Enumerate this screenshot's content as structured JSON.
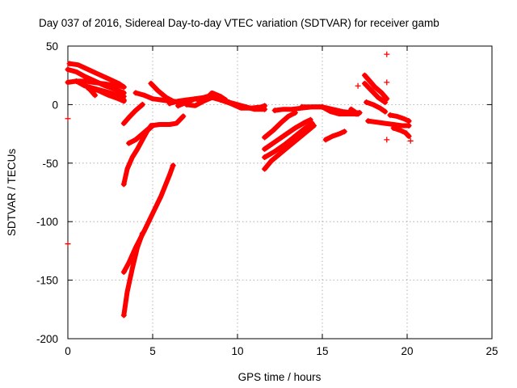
{
  "chart_data": {
    "type": "scatter",
    "title": "Day 037 of 2016, Sidereal Day-to-day VTEC variation (SDTVAR) for receiver gamb",
    "xlabel": "GPS time / hours",
    "ylabel": "SDTVAR / TECUs",
    "xlim": [
      0,
      25
    ],
    "ylim": [
      -200,
      50
    ],
    "xticks": [
      0,
      5,
      10,
      15,
      20,
      25
    ],
    "yticks": [
      50,
      0,
      -50,
      -100,
      -150,
      -200
    ],
    "grid": true,
    "color": "#ff0000",
    "marker": "+",
    "tracks": [
      {
        "x": [
          0.1,
          0.6,
          1.2,
          1.8,
          2.4,
          3.0,
          3.3
        ],
        "y": [
          35,
          34,
          30,
          26,
          22,
          18,
          15
        ]
      },
      {
        "x": [
          0.0,
          0.5,
          1.0,
          1.6,
          2.2,
          2.8,
          3.3
        ],
        "y": [
          30,
          28,
          24,
          20,
          16,
          13,
          10
        ]
      },
      {
        "x": [
          0.0,
          0.5,
          1.0,
          1.5,
          2.0,
          2.5,
          3.0,
          3.3
        ],
        "y": [
          19,
          20,
          20,
          19,
          18,
          17,
          16,
          15
        ]
      },
      {
        "x": [
          0.5,
          1.0,
          1.5,
          2.0,
          2.5,
          3.0,
          3.3
        ],
        "y": [
          20,
          16,
          14,
          12,
          10,
          8,
          7
        ]
      },
      {
        "x": [
          1.2,
          1.8,
          2.4,
          3.0,
          3.3
        ],
        "y": [
          14,
          12,
          8,
          5,
          4
        ]
      },
      {
        "x": [
          1.3,
          1.6
        ],
        "y": [
          13,
          8
        ]
      },
      {
        "x": [
          2.5,
          3.3
        ],
        "y": [
          8,
          3
        ]
      },
      {
        "x": [
          3.3,
          3.6,
          4.0,
          4.4
        ],
        "y": [
          -16,
          -11,
          -5,
          0
        ]
      },
      {
        "x": [
          3.3,
          3.5,
          3.8,
          4.1,
          4.4,
          4.7,
          5.0
        ],
        "y": [
          -68,
          -55,
          -45,
          -38,
          -30,
          -22,
          -18
        ]
      },
      {
        "x": [
          3.6,
          4.0,
          4.4,
          4.8,
          5.0
        ],
        "y": [
          -33,
          -30,
          -25,
          -20,
          -18
        ]
      },
      {
        "x": [
          4.9,
          5.4,
          6.0,
          6.4,
          6.8
        ],
        "y": [
          -18,
          -17,
          -17,
          -16,
          -10
        ]
      },
      {
        "x": [
          3.3,
          3.6,
          4.0,
          4.5,
          5.0,
          5.5,
          6.0,
          6.2
        ],
        "y": [
          -143,
          -135,
          -122,
          -108,
          -93,
          -78,
          -60,
          -52
        ]
      },
      {
        "x": [
          3.3,
          3.5,
          3.8,
          4.1,
          4.4
        ],
        "y": [
          -180,
          -160,
          -140,
          -122,
          -110
        ]
      },
      {
        "x": [
          4.0,
          4.5,
          5.0,
          5.5,
          6.0,
          6.5,
          7.0
        ],
        "y": [
          10,
          8,
          5,
          4,
          3,
          2,
          2
        ]
      },
      {
        "x": [
          4.9,
          5.3,
          5.8,
          6.2,
          6.6
        ],
        "y": [
          18,
          12,
          6,
          3,
          2
        ]
      },
      {
        "x": [
          6.0,
          6.5,
          7.0,
          7.5,
          8.0,
          8.5,
          9.0
        ],
        "y": [
          1,
          3,
          4,
          5,
          6,
          8,
          6
        ]
      },
      {
        "x": [
          6.5,
          7.0,
          7.5,
          8.0,
          8.5,
          9.0,
          9.3
        ],
        "y": [
          -1,
          2,
          5,
          3,
          10,
          7,
          4
        ]
      },
      {
        "x": [
          7.0,
          7.5,
          8.0,
          8.5,
          9.0,
          9.5
        ],
        "y": [
          0,
          -1,
          3,
          6,
          4,
          2
        ]
      },
      {
        "x": [
          9.0,
          9.6,
          10.2,
          10.8,
          11.4,
          11.6
        ],
        "y": [
          4,
          1,
          -3,
          -3,
          -2,
          -1
        ]
      },
      {
        "x": [
          9.5,
          10.0,
          10.5,
          11.0,
          11.6
        ],
        "y": [
          2,
          0,
          -2,
          -4,
          -4
        ]
      },
      {
        "x": [
          11.6,
          12.1,
          12.6,
          13.0,
          13.4
        ],
        "y": [
          -28,
          -22,
          -15,
          -10,
          -7
        ]
      },
      {
        "x": [
          11.6,
          12.2,
          12.8,
          13.4,
          14.0,
          14.3
        ],
        "y": [
          -38,
          -32,
          -26,
          -20,
          -15,
          -13
        ]
      },
      {
        "x": [
          11.6,
          12.2,
          12.8,
          13.4,
          14.0,
          14.4
        ],
        "y": [
          -45,
          -40,
          -34,
          -27,
          -20,
          -16
        ]
      },
      {
        "x": [
          11.6,
          12.0,
          12.5,
          13.0,
          13.5,
          14.0,
          14.5
        ],
        "y": [
          -55,
          -48,
          -42,
          -36,
          -30,
          -24,
          -18
        ]
      },
      {
        "x": [
          12.2,
          12.7,
          13.2,
          13.8,
          14.4,
          15.0
        ],
        "y": [
          -5,
          -4,
          -4,
          -3,
          -2,
          -2
        ]
      },
      {
        "x": [
          13.8,
          14.4,
          15.0,
          15.5,
          16.0,
          16.6,
          17.0
        ],
        "y": [
          -2,
          -2,
          -2,
          -6,
          -8,
          -8,
          -8
        ]
      },
      {
        "x": [
          15.0,
          15.6,
          16.2,
          16.8,
          17.2
        ],
        "y": [
          -2,
          -4,
          -6,
          -7,
          -7
        ]
      },
      {
        "x": [
          15.2,
          15.6,
          16.0,
          16.3
        ],
        "y": [
          -30,
          -27,
          -25,
          -23
        ]
      },
      {
        "x": [
          16.7,
          17.1
        ],
        "y": [
          -4,
          -8
        ]
      },
      {
        "x": [
          17.5,
          17.8,
          18.1,
          18.5,
          18.8
        ],
        "y": [
          25,
          20,
          15,
          10,
          5
        ]
      },
      {
        "x": [
          17.5,
          17.9,
          18.3,
          18.7
        ],
        "y": [
          18,
          12,
          6,
          2
        ]
      },
      {
        "x": [
          17.6,
          18.0,
          18.4,
          18.7
        ],
        "y": [
          2,
          0,
          -3,
          -6
        ]
      },
      {
        "x": [
          17.7,
          18.2,
          18.7,
          19.2,
          19.7,
          20.1
        ],
        "y": [
          -14,
          -15,
          -16,
          -17,
          -18,
          -18
        ]
      },
      {
        "x": [
          19.0,
          19.4,
          19.8,
          20.1
        ],
        "y": [
          -9,
          -10,
          -12,
          -14
        ]
      },
      {
        "x": [
          19.2,
          19.6,
          19.9,
          20.1
        ],
        "y": [
          -20,
          -22,
          -24,
          -27
        ]
      }
    ],
    "isolated_points": [
      {
        "x": 0.0,
        "y": -12
      },
      {
        "x": 0.0,
        "y": -119
      },
      {
        "x": 18.8,
        "y": 43
      },
      {
        "x": 18.8,
        "y": 19
      },
      {
        "x": 18.8,
        "y": -30
      },
      {
        "x": 17.1,
        "y": 16
      },
      {
        "x": 20.2,
        "y": -31
      }
    ]
  }
}
